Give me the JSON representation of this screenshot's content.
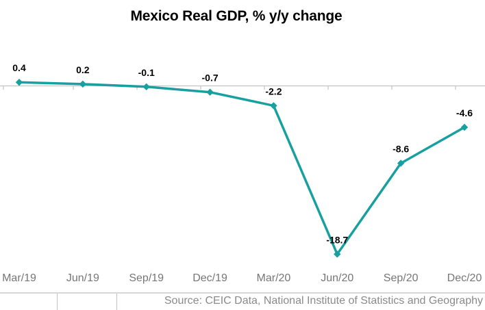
{
  "chart_data": {
    "type": "line",
    "title": "Mexico Real GDP, % y/y change",
    "categories": [
      "Mar/19",
      "Jun/19",
      "Sep/19",
      "Dec/19",
      "Mar/20",
      "Jun/20",
      "Sep/20",
      "Dec/20"
    ],
    "values": [
      0.4,
      0.2,
      -0.1,
      -0.7,
      -2.2,
      -18.7,
      -8.6,
      -4.6
    ],
    "data_labels": [
      "0.4",
      "0.2",
      "-0.1",
      "-0.7",
      "-2.2",
      "-18.7",
      "-8.6",
      "-4.6"
    ],
    "ylim": [
      -20,
      2
    ],
    "xlabel": "",
    "ylabel": "",
    "grid": false,
    "legend": "none",
    "marker": "diamond",
    "zero_axis_line": true
  },
  "footer": {
    "source_label": "Source: CEIC Data, National Institute of Statistics and Geography"
  },
  "colors": {
    "line": "#18A0A0",
    "axis_line": "#C3C3C3",
    "tick_label": "#767676",
    "data_label": "#000000",
    "footer_text": "#8A8A8A",
    "footer_border": "#D6D6D6"
  }
}
